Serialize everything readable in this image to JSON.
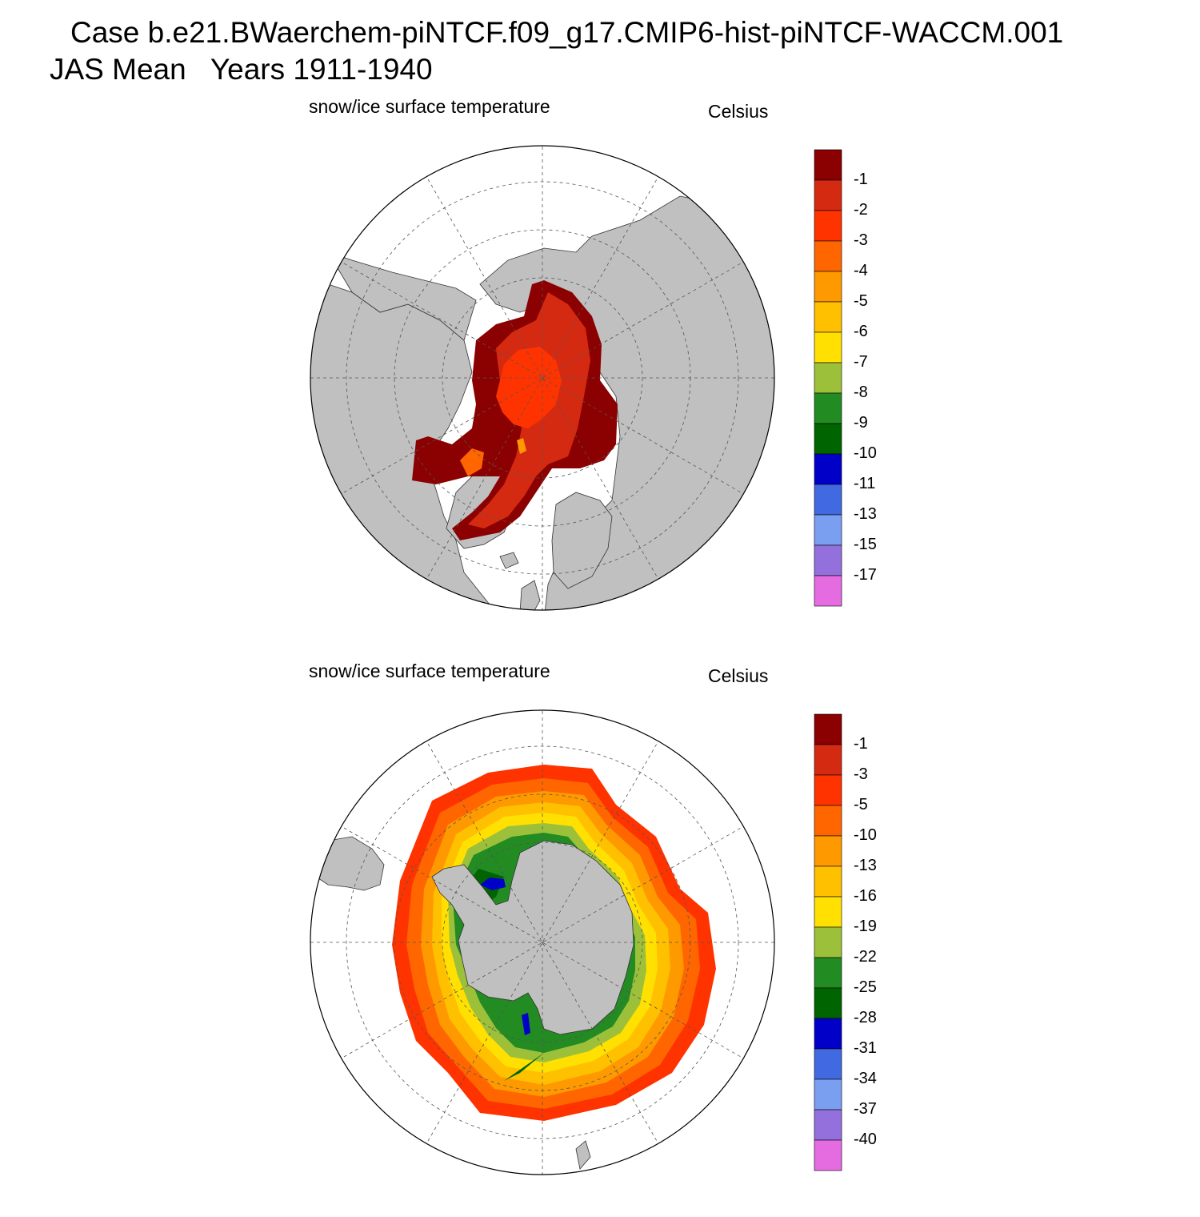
{
  "header": {
    "case_line": "Case b.e21.BWaerchem-piNTCF.f09_g17.CMIP6-hist-piNTCF-WACCM.001",
    "period_line": "JAS Mean   Years 1911-1940"
  },
  "colors": {
    "land": "#c0c0c0",
    "palette": [
      "#8b0000",
      "#d52a12",
      "#ff3300",
      "#ff6600",
      "#ff9900",
      "#ffc000",
      "#ffe000",
      "#9dc03a",
      "#228b22",
      "#006400",
      "#0000c8",
      "#4169e1",
      "#7b9ff0",
      "#9370db",
      "#e56be0"
    ]
  },
  "chart_data": [
    {
      "type": "heatmap",
      "projection": "north-polar-stereographic",
      "title": "snow/ice surface temperature",
      "units": "Celsius",
      "colorbar_levels": [
        "-1",
        "-2",
        "-3",
        "-4",
        "-5",
        "-6",
        "-7",
        "-8",
        "-9",
        "-10",
        "-11",
        "-13",
        "-15",
        "-17"
      ],
      "field_range": [
        -4,
        0
      ]
    },
    {
      "type": "heatmap",
      "projection": "south-polar-stereographic",
      "title": "snow/ice surface temperature",
      "units": "Celsius",
      "colorbar_levels": [
        "-1",
        "-3",
        "-5",
        "-10",
        "-13",
        "-16",
        "-19",
        "-22",
        "-25",
        "-28",
        "-31",
        "-34",
        "-37",
        "-40"
      ],
      "field_range": [
        -31,
        0
      ]
    }
  ]
}
